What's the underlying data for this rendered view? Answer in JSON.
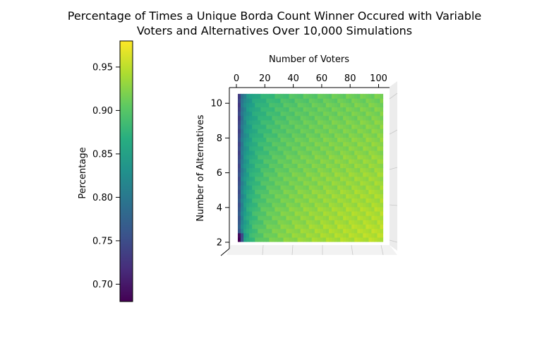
{
  "chart_data": {
    "type": "surface3d",
    "title_line1": "Percentage of Times a Unique Borda Count Winner Occured with Variable",
    "title_line2": "Voters and Alternatives Over 10,000 Simulations",
    "xlabel": "Number of Voters",
    "ylabel": "Number of Alternatives",
    "colorbar_label": "Percentage",
    "x_ticks": [
      "0",
      "20",
      "40",
      "60",
      "80",
      "100"
    ],
    "y_ticks": [
      "10",
      "8",
      "6",
      "4",
      "2"
    ],
    "colorbar_ticks": [
      "0.95",
      "0.90",
      "0.85",
      "0.80",
      "0.75",
      "0.70"
    ],
    "xlim": [
      0,
      105
    ],
    "ylim": [
      1.5,
      10.5
    ],
    "colorbar_range": [
      0.68,
      0.98
    ],
    "colormap": "viridis",
    "voters_range": [
      1,
      103
    ],
    "alternatives_range": [
      2,
      10
    ],
    "value_range_approx": [
      0.68,
      0.98
    ]
  }
}
